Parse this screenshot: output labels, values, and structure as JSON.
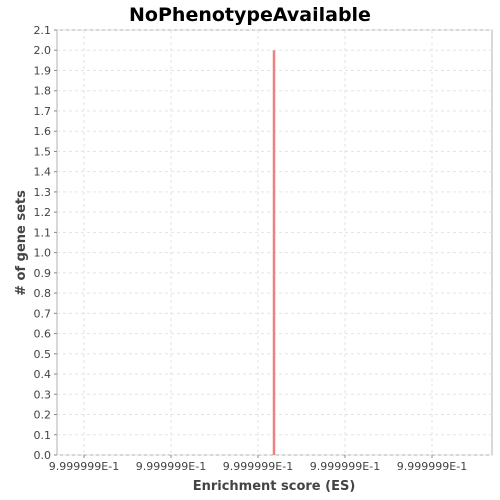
{
  "chart_data": {
    "type": "bar",
    "title": "NoPhenotypeAvailable",
    "xlabel": "Enrichment score (ES)",
    "ylabel": "# of gene sets",
    "x_tick_labels": [
      "9.999999E-1",
      "9.999999E-1",
      "9.999999E-1",
      "9.999999E-1",
      "9.999999E-1"
    ],
    "y_ticks": [
      0.0,
      0.1,
      0.2,
      0.3,
      0.4,
      0.5,
      0.6,
      0.7,
      0.8,
      0.9,
      1.0,
      1.1,
      1.2,
      1.3,
      1.4,
      1.5,
      1.6,
      1.7,
      1.8,
      1.9,
      2.0,
      2.1
    ],
    "ylim": [
      0,
      2.1
    ],
    "grid": true,
    "series": [
      {
        "color": "#f08080",
        "points": [
          {
            "x": 0.9999999,
            "y": 2
          }
        ]
      }
    ]
  }
}
